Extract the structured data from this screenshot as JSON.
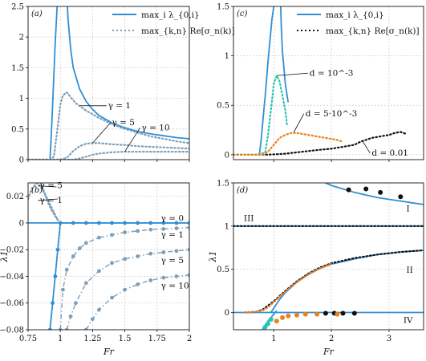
{
  "figure": {
    "legend_line_solid": "max_i λ_{0,i}",
    "legend_line_dotted": "max_{k,n} Re[σ_n(k)]",
    "colors": {
      "blue": "#2f8fd6",
      "gray": "#7f9fb8",
      "teal": "#27c6b4",
      "orange": "#ef7f1a",
      "black": "#111111",
      "grid": "#d0d0d0"
    }
  },
  "chart_data": [
    {
      "id": "a",
      "panel_label": "(a)",
      "type": "line",
      "xlim": [
        0.75,
        2.0
      ],
      "ylim": [
        0,
        2.5
      ],
      "xticks": [
        0.75,
        1.0,
        1.25,
        1.5,
        1.75,
        2.0
      ],
      "yticks": [
        0,
        0.5,
        1,
        1.5,
        2,
        2.5
      ],
      "ytick_labels": [
        "0",
        "0.5",
        "1",
        "1.5",
        "2",
        "2.5"
      ],
      "grid": true,
      "legend": "top-right",
      "series": [
        {
          "name": "max_i λ_{0,i}",
          "style": "solid",
          "color": "#2f8fd6",
          "x": [
            0.92,
            0.93,
            0.94,
            0.95,
            0.96,
            0.97,
            0.975
          ],
          "y": [
            0,
            0.4,
            0.9,
            1.4,
            1.9,
            2.3,
            2.5
          ]
        },
        {
          "style": "solid",
          "color": "#2f8fd6",
          "x": [
            1.055,
            1.06,
            1.08,
            1.1,
            1.15,
            1.2,
            1.25,
            1.3,
            1.4,
            1.5,
            1.6,
            1.7,
            1.8,
            1.9,
            2.0
          ],
          "y": [
            2.5,
            2.3,
            1.8,
            1.5,
            1.15,
            0.95,
            0.82,
            0.72,
            0.6,
            0.52,
            0.46,
            0.42,
            0.39,
            0.36,
            0.34
          ]
        },
        {
          "name": "max_{k,n} Re[σ_n(k)]",
          "label": "γ = 1",
          "style": "dotted",
          "color": "#7f9fb8",
          "x": [
            0.75,
            0.85,
            0.92,
            0.95,
            0.98,
            1.0,
            1.02,
            1.05,
            1.08,
            1.12,
            1.2,
            1.3,
            1.4,
            1.5,
            1.6,
            1.7,
            1.8,
            1.9,
            2.0
          ],
          "y": [
            0,
            0,
            0,
            0.05,
            0.55,
            0.9,
            1.05,
            1.1,
            1.02,
            0.92,
            0.8,
            0.68,
            0.58,
            0.5,
            0.44,
            0.38,
            0.34,
            0.3,
            0.27
          ]
        },
        {
          "label": "γ = 5",
          "style": "dotted",
          "color": "#7f9fb8",
          "x": [
            0.75,
            0.95,
            1.0,
            1.05,
            1.1,
            1.15,
            1.2,
            1.25,
            1.3,
            1.35,
            1.4,
            1.5,
            1.6,
            1.7,
            1.8,
            1.9,
            2.0
          ],
          "y": [
            0,
            0,
            0,
            0.03,
            0.14,
            0.22,
            0.26,
            0.27,
            0.27,
            0.26,
            0.25,
            0.24,
            0.22,
            0.21,
            0.2,
            0.19,
            0.18
          ]
        },
        {
          "label": "γ = 10",
          "style": "dotted",
          "color": "#7f9fb8",
          "x": [
            0.75,
            1.05,
            1.1,
            1.15,
            1.2,
            1.25,
            1.3,
            1.35,
            1.4,
            1.5,
            1.6,
            1.7,
            1.8,
            1.9,
            2.0
          ],
          "y": [
            0,
            0,
            0,
            0.02,
            0.05,
            0.08,
            0.1,
            0.11,
            0.12,
            0.13,
            0.13,
            0.13,
            0.13,
            0.13,
            0.13
          ]
        }
      ],
      "annotations": [
        {
          "text": "γ = 1",
          "at": [
            1.37,
            0.84
          ],
          "points_to": [
            1.15,
            0.88
          ]
        },
        {
          "text": "γ = 5",
          "at": [
            1.4,
            0.56
          ],
          "points_to": [
            1.25,
            0.27
          ]
        },
        {
          "text": "γ = 10",
          "at": [
            1.63,
            0.48
          ],
          "points_to": [
            1.5,
            0.13
          ]
        }
      ]
    },
    {
      "id": "c",
      "panel_label": "(c)",
      "type": "line",
      "xlim": [
        0.3,
        3.6
      ],
      "ylim": [
        -0.05,
        1.5
      ],
      "xticks": [
        1,
        2,
        3
      ],
      "yticks": [
        0,
        0.5,
        1,
        1.5
      ],
      "ytick_labels": [
        "0",
        "0.5",
        "1",
        "1.5"
      ],
      "grid": true,
      "legend": "top-right",
      "series": [
        {
          "name": "max_i λ_{0,i}",
          "style": "solid",
          "color": "#2f8fd6",
          "x": [
            0.75,
            0.78,
            0.82,
            0.86,
            0.9,
            0.94,
            0.97,
            1.0
          ],
          "y": [
            0,
            0.15,
            0.4,
            0.65,
            0.95,
            1.2,
            1.38,
            1.5
          ]
        },
        {
          "style": "solid",
          "color": "#2f8fd6",
          "x": [
            1.12,
            1.13,
            1.15,
            1.18,
            1.2,
            1.23,
            1.25
          ],
          "y": [
            1.5,
            1.3,
            1.05,
            0.85,
            0.72,
            0.6,
            0.53
          ]
        },
        {
          "name": "max_{k,n} Re[σ_n(k)]",
          "style": "dotted",
          "color": "#111111",
          "x": [
            0.3,
            0.6,
            0.9,
            1.2,
            1.5,
            1.8,
            2.0,
            2.2,
            2.4,
            2.5,
            2.6,
            2.7,
            2.8,
            2.9,
            3.0,
            3.1,
            3.2,
            3.3
          ],
          "y": [
            0,
            0,
            0,
            0.01,
            0.03,
            0.05,
            0.06,
            0.08,
            0.1,
            0.13,
            0.15,
            0.17,
            0.18,
            0.19,
            0.2,
            0.22,
            0.23,
            0.21
          ]
        },
        {
          "label": "d = 10^-3",
          "style": "dotted",
          "color": "#27c6b4",
          "x": [
            0.3,
            0.7,
            0.85,
            0.9,
            0.95,
            1.0,
            1.05,
            1.1,
            1.15,
            1.2,
            1.23
          ],
          "y": [
            0,
            0,
            0.02,
            0.2,
            0.45,
            0.72,
            0.8,
            0.74,
            0.6,
            0.45,
            0.3
          ]
        },
        {
          "label": "d = 5·10^-3",
          "style": "dotted",
          "color": "#ef7f1a",
          "x": [
            0.3,
            0.8,
            0.9,
            1.0,
            1.1,
            1.2,
            1.3,
            1.4,
            1.5,
            1.6,
            1.7,
            1.8,
            1.9,
            2.0,
            2.1,
            2.2
          ],
          "y": [
            0,
            0,
            0.03,
            0.1,
            0.17,
            0.2,
            0.22,
            0.22,
            0.21,
            0.2,
            0.19,
            0.18,
            0.17,
            0.16,
            0.15,
            0.13
          ]
        }
      ],
      "annotations": [
        {
          "text": "d = 10^-3",
          "at": [
            1.62,
            0.8
          ],
          "points_to": [
            1.05,
            0.8
          ]
        },
        {
          "text": "d = 5·10^-3",
          "at": [
            1.55,
            0.39
          ],
          "points_to": [
            1.35,
            0.23
          ]
        },
        {
          "text": "d = 0.01",
          "at": [
            2.7,
            -0.01
          ],
          "points_to": [
            2.55,
            0.13
          ]
        }
      ]
    },
    {
      "id": "b",
      "panel_label": "(b)",
      "type": "line",
      "xlim": [
        0.75,
        2.0
      ],
      "ylim": [
        -0.08,
        0.03
      ],
      "xticks": [
        0.75,
        1.0,
        1.25,
        1.5,
        1.75,
        2.0
      ],
      "xtick_labels": [
        "0.75",
        "1",
        "1.25",
        "1.5",
        "1.75",
        "2"
      ],
      "yticks": [
        -0.08,
        -0.06,
        -0.04,
        -0.02,
        0,
        0.02
      ],
      "ytick_labels": [
        "−0.08",
        "−0.06",
        "−0.04",
        "−0.02",
        "0",
        "0.02"
      ],
      "xlabel": "Fr",
      "ylabel": "λ1",
      "grid": true,
      "series": [
        {
          "label": "γ = 0",
          "style": "solid-markers",
          "color": "#2f8fd6",
          "x": [
            0.92,
            0.94,
            0.96,
            0.98,
            1.0,
            1.1,
            1.2,
            1.3,
            1.4,
            1.5,
            1.6,
            1.7,
            1.8,
            1.9,
            2.0
          ],
          "y": [
            -0.08,
            -0.06,
            -0.04,
            -0.02,
            0,
            0,
            0,
            0,
            0,
            0,
            0,
            0,
            0,
            0,
            0
          ]
        },
        {
          "style": "solid",
          "color": "#2f8fd6",
          "x": [
            0.75,
            1.0,
            1.25,
            1.5,
            1.75,
            2.0
          ],
          "y": [
            0,
            0,
            0,
            0,
            0,
            0
          ]
        },
        {
          "label": "γ = 1",
          "style": "dashdot-markers",
          "color": "#7f9fb8",
          "x": [
            1.0,
            1.02,
            1.05,
            1.1,
            1.15,
            1.2,
            1.3,
            1.4,
            1.5,
            1.6,
            1.7,
            1.8,
            1.9,
            2.0
          ],
          "y": [
            -0.08,
            -0.05,
            -0.035,
            -0.025,
            -0.019,
            -0.015,
            -0.011,
            -0.009,
            -0.007,
            -0.006,
            -0.005,
            -0.0045,
            -0.004,
            -0.0035
          ]
        },
        {
          "label": "γ = 5",
          "style": "dashdot-markers",
          "color": "#7f9fb8",
          "x": [
            1.05,
            1.08,
            1.12,
            1.2,
            1.3,
            1.4,
            1.5,
            1.6,
            1.7,
            1.8,
            1.9,
            2.0
          ],
          "y": [
            -0.08,
            -0.07,
            -0.06,
            -0.045,
            -0.036,
            -0.03,
            -0.027,
            -0.025,
            -0.023,
            -0.022,
            -0.021,
            -0.02
          ]
        },
        {
          "label": "γ = 10",
          "style": "dashdot-markers",
          "color": "#7f9fb8",
          "x": [
            1.2,
            1.25,
            1.3,
            1.4,
            1.5,
            1.6,
            1.7,
            1.8,
            1.9,
            2.0
          ],
          "y": [
            -0.08,
            -0.072,
            -0.065,
            -0.056,
            -0.05,
            -0.046,
            -0.043,
            -0.041,
            -0.04,
            -0.039
          ]
        },
        {
          "label": "γ = 1",
          "style": "dotted",
          "color": "#7f9fb8",
          "x": [
            0.85,
            0.88,
            0.9,
            0.93,
            0.96,
            0.99
          ],
          "y": [
            0.03,
            0.022,
            0.016,
            0.01,
            0.005,
            0.001
          ]
        },
        {
          "label": "γ = 5",
          "style": "dotted",
          "color": "#7f9fb8",
          "x": [
            0.75,
            0.78,
            0.82,
            0.86,
            0.9,
            0.94,
            0.98
          ],
          "y": [
            0.018,
            0.026,
            0.03,
            0.025,
            0.018,
            0.01,
            0.002
          ]
        }
      ],
      "annotations": [
        {
          "text": "γ = 5",
          "at": [
            0.84,
            0.026
          ],
          "points_to": [
            0.97,
            0.027
          ]
        },
        {
          "text": "γ = 1",
          "at": [
            0.84,
            0.015
          ],
          "points_to": [
            0.98,
            0.018
          ]
        },
        {
          "text": "γ = 0",
          "at": [
            1.78,
            0.0015
          ]
        },
        {
          "text": "γ = 1",
          "at": [
            1.78,
            -0.011
          ]
        },
        {
          "text": "γ = 5",
          "at": [
            1.78,
            -0.03
          ]
        },
        {
          "text": "γ = 10",
          "at": [
            1.78,
            -0.049
          ]
        }
      ]
    },
    {
      "id": "d",
      "panel_label": "(d)",
      "type": "line",
      "xlim": [
        0.3,
        3.6
      ],
      "ylim": [
        -0.2,
        1.5
      ],
      "xticks": [
        1,
        2,
        3
      ],
      "yticks": [
        0,
        0.5,
        1,
        1.5
      ],
      "ytick_labels": [
        "0",
        "0.5",
        "1",
        "1.5"
      ],
      "xlabel": "Fr",
      "ylabel": "λ1",
      "grid": true,
      "series": [
        {
          "label": "I",
          "style": "solid",
          "color": "#2f8fd6",
          "x": [
            1.9,
            2.0,
            2.2,
            2.4,
            2.6,
            2.8,
            3.0,
            3.2,
            3.4,
            3.6
          ],
          "y": [
            1.5,
            1.47,
            1.43,
            1.39,
            1.36,
            1.33,
            1.31,
            1.29,
            1.27,
            1.25
          ]
        },
        {
          "label": "III",
          "style": "solid",
          "color": "#2f8fd6",
          "x": [
            0.3,
            3.6
          ],
          "y": [
            1,
            1
          ]
        },
        {
          "label": "II",
          "style": "solid",
          "color": "#2f8fd6",
          "x": [
            0.95,
            1.0,
            1.1,
            1.2,
            1.4,
            1.6,
            1.8,
            2.0,
            2.4,
            2.8,
            3.2,
            3.6
          ],
          "y": [
            0,
            0.05,
            0.15,
            0.23,
            0.35,
            0.44,
            0.51,
            0.56,
            0.62,
            0.67,
            0.7,
            0.72
          ]
        },
        {
          "label": "IV",
          "style": "solid",
          "color": "#2f8fd6",
          "x": [
            0.3,
            3.6
          ],
          "y": [
            0,
            0
          ]
        },
        {
          "style": "solid",
          "color": "#2f8fd6",
          "x": [
            0.8,
            0.85,
            0.9,
            0.95,
            1.0,
            1.05
          ],
          "y": [
            -0.2,
            -0.15,
            -0.1,
            -0.06,
            -0.02,
            0.02
          ]
        },
        {
          "style": "dotted",
          "color": "#111111",
          "x": [
            0.3,
            3.6
          ],
          "y": [
            1,
            1
          ]
        },
        {
          "style": "dotted",
          "color": "#111111",
          "x": [
            0.5,
            0.7,
            0.8,
            0.9,
            1.0,
            1.1,
            1.2,
            1.4,
            1.6,
            1.8,
            2.0,
            2.4,
            2.8,
            3.2,
            3.6
          ],
          "y": [
            0,
            0.01,
            0.03,
            0.08,
            0.13,
            0.19,
            0.25,
            0.36,
            0.45,
            0.52,
            0.57,
            0.63,
            0.67,
            0.7,
            0.72
          ]
        },
        {
          "style": "dotted",
          "color": "#ef7f1a",
          "x": [
            0.5,
            0.7,
            0.8,
            0.9,
            1.0,
            1.1,
            1.2,
            1.4,
            1.6,
            1.8,
            2.0
          ],
          "y": [
            0,
            0.01,
            0.02,
            0.06,
            0.12,
            0.18,
            0.24,
            0.35,
            0.44,
            0.51,
            0.56
          ]
        },
        {
          "style": "markers",
          "color": "#111111",
          "x": [
            2.3,
            2.6,
            2.85,
            3.2
          ],
          "y": [
            1.42,
            1.43,
            1.39,
            1.34
          ]
        },
        {
          "style": "markers",
          "color": "#111111",
          "x": [
            1.9,
            2.05,
            2.2,
            2.4
          ],
          "y": [
            -0.01,
            -0.01,
            -0.01,
            -0.01
          ]
        },
        {
          "style": "markers",
          "color": "#ef7f1a",
          "x": [
            1.05,
            1.15,
            1.25,
            1.4,
            1.55,
            1.75,
            2.1
          ],
          "y": [
            -0.1,
            -0.06,
            -0.04,
            -0.03,
            -0.02,
            -0.02,
            -0.02
          ]
        },
        {
          "style": "markers",
          "color": "#27c6b4",
          "x": [
            0.85,
            0.9,
            0.95
          ],
          "y": [
            -0.17,
            -0.13,
            -0.08
          ]
        }
      ],
      "annotations": [
        {
          "text": "I",
          "at": [
            3.3,
            1.17
          ]
        },
        {
          "text": "III",
          "at": [
            0.48,
            1.06
          ]
        },
        {
          "text": "II",
          "at": [
            3.3,
            0.46
          ]
        },
        {
          "text": "IV",
          "at": [
            3.25,
            -0.12
          ]
        }
      ]
    }
  ]
}
